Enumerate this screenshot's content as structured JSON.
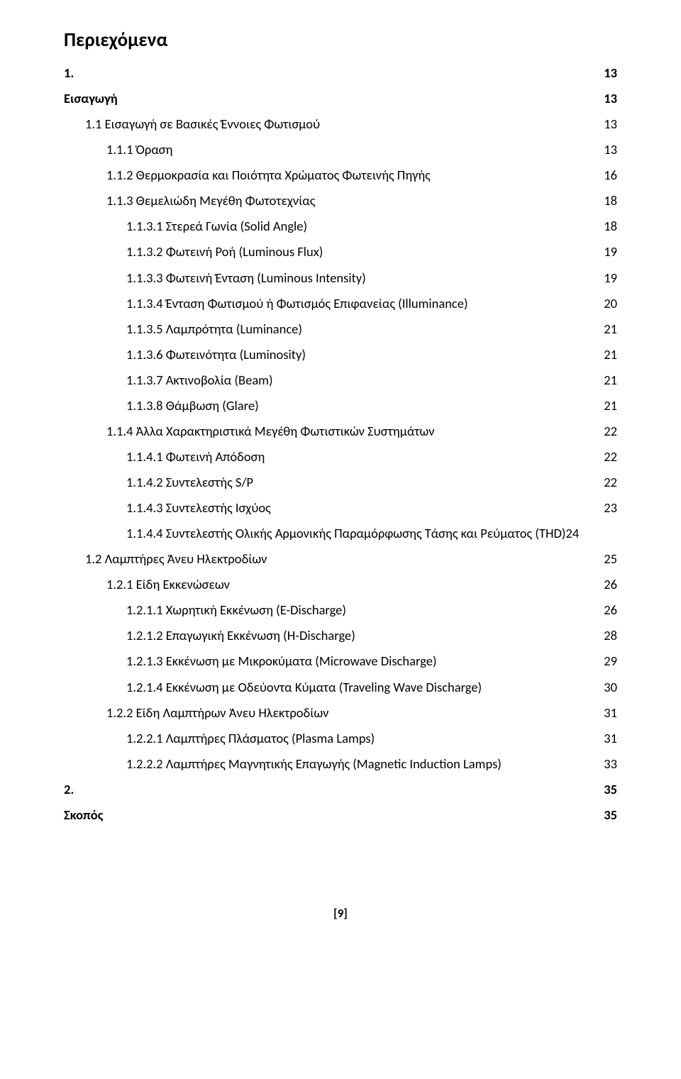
{
  "title": "Περιεχόμενα",
  "footer": "[9]",
  "colors": {
    "text": "#000000",
    "background": "#ffffff"
  },
  "typography": {
    "title_fontsize": 27,
    "line_fontsize": 18.5,
    "family": "Calibri"
  },
  "toc": [
    {
      "label": "1.",
      "page": "13",
      "indent": 0,
      "bold": true
    },
    {
      "label": "Εισαγωγή",
      "page": "13",
      "indent": 0,
      "bold": true
    },
    {
      "label": "1.1 Εισαγωγή σε Βασικές Έννοιες Φωτισμού",
      "page": "13",
      "indent": 1,
      "bold": false
    },
    {
      "label": "1.1.1 Όραση",
      "page": "13",
      "indent": 2,
      "bold": false
    },
    {
      "label": "1.1.2 Θερμοκρασία και Ποιότητα Χρώματος Φωτεινής Πηγής",
      "page": "16",
      "indent": 2,
      "bold": false
    },
    {
      "label": "1.1.3 Θεμελιώδη Μεγέθη Φωτοτεχνίας",
      "page": "18",
      "indent": 2,
      "bold": false
    },
    {
      "label": "1.1.3.1 Στερεά Γωνία (Solid Angle)",
      "page": "18",
      "indent": 3,
      "bold": false
    },
    {
      "label": "1.1.3.2 Φωτεινή Ροή (Luminous Flux)",
      "page": "19",
      "indent": 3,
      "bold": false
    },
    {
      "label": "1.1.3.3 Φωτεινή Ένταση (Luminous Intensity)",
      "page": "19",
      "indent": 3,
      "bold": false
    },
    {
      "label": "1.1.3.4 Ένταση Φωτισμού ή Φωτισμός Επιφανείας (Illuminance)",
      "page": "20",
      "indent": 3,
      "bold": false
    },
    {
      "label": "1.1.3.5 Λαμπρότητα (Luminance)",
      "page": "21",
      "indent": 3,
      "bold": false
    },
    {
      "label": "1.1.3.6 Φωτεινότητα (Luminosity)",
      "page": "21",
      "indent": 3,
      "bold": false
    },
    {
      "label": "1.1.3.7 Ακτινοβολία (Beam)",
      "page": "21",
      "indent": 3,
      "bold": false
    },
    {
      "label": "1.1.3.8 Θάμβωση (Glare)",
      "page": "21",
      "indent": 3,
      "bold": false
    },
    {
      "label": "1.1.4 Άλλα Χαρακτηριστικά Μεγέθη Φωτιστικών Συστημάτων",
      "page": "22",
      "indent": 2,
      "bold": false
    },
    {
      "label": "1.1.4.1 Φωτεινή Απόδοση",
      "page": "22",
      "indent": 3,
      "bold": false
    },
    {
      "label": "1.1.4.2 Συντελεστής S/P",
      "page": "22",
      "indent": 3,
      "bold": false
    },
    {
      "label": "1.1.4.3 Συντελεστής Ισχύος",
      "page": "23",
      "indent": 3,
      "bold": false
    },
    {
      "label": "1.1.4.4 Συντελεστής Ολικής Αρμονικής Παραμόρφωσης Τάσης και Ρεύματος (THD)",
      "page": "24",
      "indent": 3,
      "bold": false,
      "nodots": true
    },
    {
      "label": "1.2 Λαμπτήρες Άνευ Ηλεκτροδίων",
      "page": "25",
      "indent": 1,
      "bold": false
    },
    {
      "label": "1.2.1 Είδη Εκκενώσεων",
      "page": "26",
      "indent": 2,
      "bold": false
    },
    {
      "label": "1.2.1.1 Χωρητική Εκκένωση (E-Discharge)",
      "page": "26",
      "indent": 3,
      "bold": false
    },
    {
      "label": "1.2.1.2 Επαγωγική Εκκένωση (H-Discharge)",
      "page": "28",
      "indent": 3,
      "bold": false
    },
    {
      "label": "1.2.1.3 Εκκένωση με Μικροκύματα (Microwave Discharge)",
      "page": "29",
      "indent": 3,
      "bold": false
    },
    {
      "label": "1.2.1.4 Εκκένωση με Οδεύοντα Κύματα (Traveling Wave Discharge)",
      "page": "30",
      "indent": 3,
      "bold": false
    },
    {
      "label": "1.2.2 Είδη Λαμπτήρων Άνευ Ηλεκτροδίων",
      "page": "31",
      "indent": 2,
      "bold": false
    },
    {
      "label": "1.2.2.1  Λαμπτήρες Πλάσματος (Plasma Lamps)",
      "page": "31",
      "indent": 3,
      "bold": false
    },
    {
      "label": "1.2.2.2 Λαμπτήρες Μαγνητικής Επαγωγής (Magnetic Induction Lamps)",
      "page": "33",
      "indent": 3,
      "bold": false
    },
    {
      "label": "2.",
      "page": "35",
      "indent": 0,
      "bold": true
    },
    {
      "label": "Σκοπός",
      "page": "35",
      "indent": 0,
      "bold": true
    }
  ]
}
